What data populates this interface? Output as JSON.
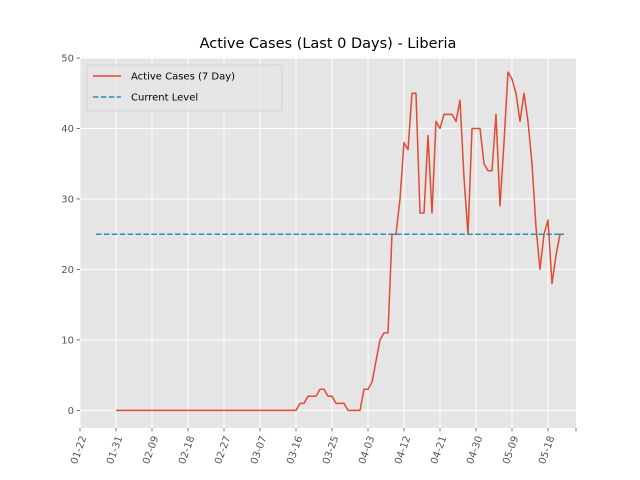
{
  "chart_data": {
    "type": "line",
    "title": "Active Cases (Last 0 Days) - Liberia",
    "xlabel": "",
    "ylabel": "",
    "grid": true,
    "legend_placement": "top-left",
    "x_tick_labels": [
      "01-22",
      "01-31",
      "02-09",
      "02-18",
      "02-27",
      "03-07",
      "03-16",
      "03-25",
      "04-03",
      "04-12",
      "04-21",
      "04-30",
      "05-09",
      "05-18"
    ],
    "x_range": [
      "01-22",
      "05-25"
    ],
    "ylim": [
      -2.5,
      50
    ],
    "y_ticks": [
      0,
      10,
      20,
      30,
      40,
      50
    ],
    "series": [
      {
        "name": "Active Cases (7 Day)",
        "color": "#e24a33",
        "style": "solid",
        "points": [
          [
            "01-31",
            0
          ],
          [
            "03-16",
            0
          ],
          [
            "03-17",
            1
          ],
          [
            "03-18",
            1
          ],
          [
            "03-19",
            2
          ],
          [
            "03-21",
            2
          ],
          [
            "03-22",
            3
          ],
          [
            "03-23",
            3
          ],
          [
            "03-24",
            2
          ],
          [
            "03-25",
            2
          ],
          [
            "03-26",
            1
          ],
          [
            "03-28",
            1
          ],
          [
            "03-29",
            0
          ],
          [
            "03-31",
            0
          ],
          [
            "04-01",
            0
          ],
          [
            "04-02",
            3
          ],
          [
            "04-03",
            3
          ],
          [
            "04-04",
            4
          ],
          [
            "04-05",
            7
          ],
          [
            "04-06",
            10
          ],
          [
            "04-07",
            11
          ],
          [
            "04-08",
            11
          ],
          [
            "04-09",
            25
          ],
          [
            "04-10",
            25
          ],
          [
            "04-11",
            30
          ],
          [
            "04-12",
            38
          ],
          [
            "04-13",
            37
          ],
          [
            "04-14",
            45
          ],
          [
            "04-15",
            45
          ],
          [
            "04-16",
            28
          ],
          [
            "04-17",
            28
          ],
          [
            "04-18",
            39
          ],
          [
            "04-19",
            28
          ],
          [
            "04-20",
            41
          ],
          [
            "04-21",
            40
          ],
          [
            "04-22",
            42
          ],
          [
            "04-24",
            42
          ],
          [
            "04-25",
            41
          ],
          [
            "04-26",
            44
          ],
          [
            "04-27",
            33
          ],
          [
            "04-28",
            25
          ],
          [
            "04-29",
            40
          ],
          [
            "04-30",
            40
          ],
          [
            "05-01",
            40
          ],
          [
            "05-02",
            35
          ],
          [
            "05-03",
            34
          ],
          [
            "05-04",
            34
          ],
          [
            "05-05",
            42
          ],
          [
            "05-06",
            29
          ],
          [
            "05-07",
            38
          ],
          [
            "05-08",
            48
          ],
          [
            "05-09",
            47
          ],
          [
            "05-10",
            45
          ],
          [
            "05-11",
            41
          ],
          [
            "05-12",
            45
          ],
          [
            "05-13",
            41
          ],
          [
            "05-14",
            35
          ],
          [
            "05-15",
            26
          ],
          [
            "05-16",
            20
          ],
          [
            "05-17",
            25
          ],
          [
            "05-18",
            27
          ],
          [
            "05-19",
            18
          ],
          [
            "05-20",
            22
          ],
          [
            "05-21",
            25
          ],
          [
            "05-22",
            25
          ]
        ]
      },
      {
        "name": "Current Level",
        "color": "#348abd",
        "style": "dashed",
        "points": [
          [
            "01-26",
            25
          ],
          [
            "05-22",
            25
          ]
        ]
      }
    ]
  }
}
